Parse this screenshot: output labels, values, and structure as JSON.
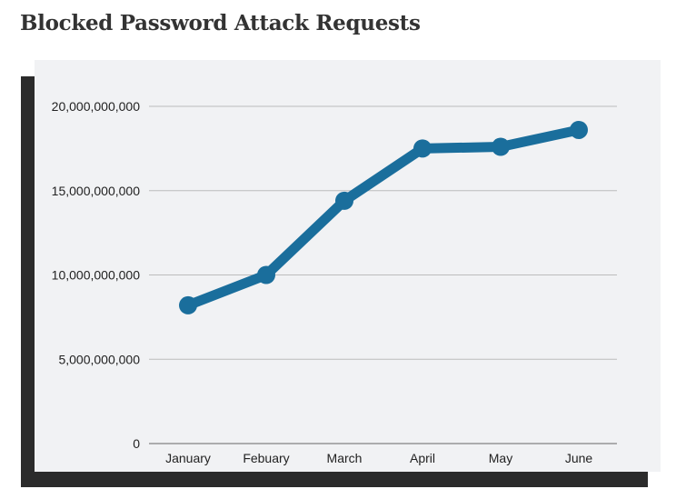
{
  "chart_title": "Blocked Password Attack Requests",
  "colors": {
    "line": "#1a6e9c",
    "panel_bg": "#f1f2f4",
    "shadow": "#2b2b2b",
    "grid": "#bcbcbc"
  },
  "chart_data": {
    "type": "line",
    "title": "Blocked Password Attack Requests",
    "xlabel": "",
    "ylabel": "",
    "categories": [
      "January",
      "Febuary",
      "March",
      "April",
      "May",
      "June"
    ],
    "series": [
      {
        "values": [
          8200000000,
          10000000000,
          14400000000,
          17500000000,
          17600000000,
          18600000000
        ]
      }
    ],
    "ylim": [
      0,
      20000000000
    ],
    "yticks": [
      0,
      5000000000,
      10000000000,
      15000000000,
      20000000000
    ],
    "ytick_labels": [
      "0",
      "5,000,000,000",
      "10,000,000,000",
      "15,000,000,000",
      "20,000,000,000"
    ],
    "grid": true,
    "legend": "none"
  }
}
